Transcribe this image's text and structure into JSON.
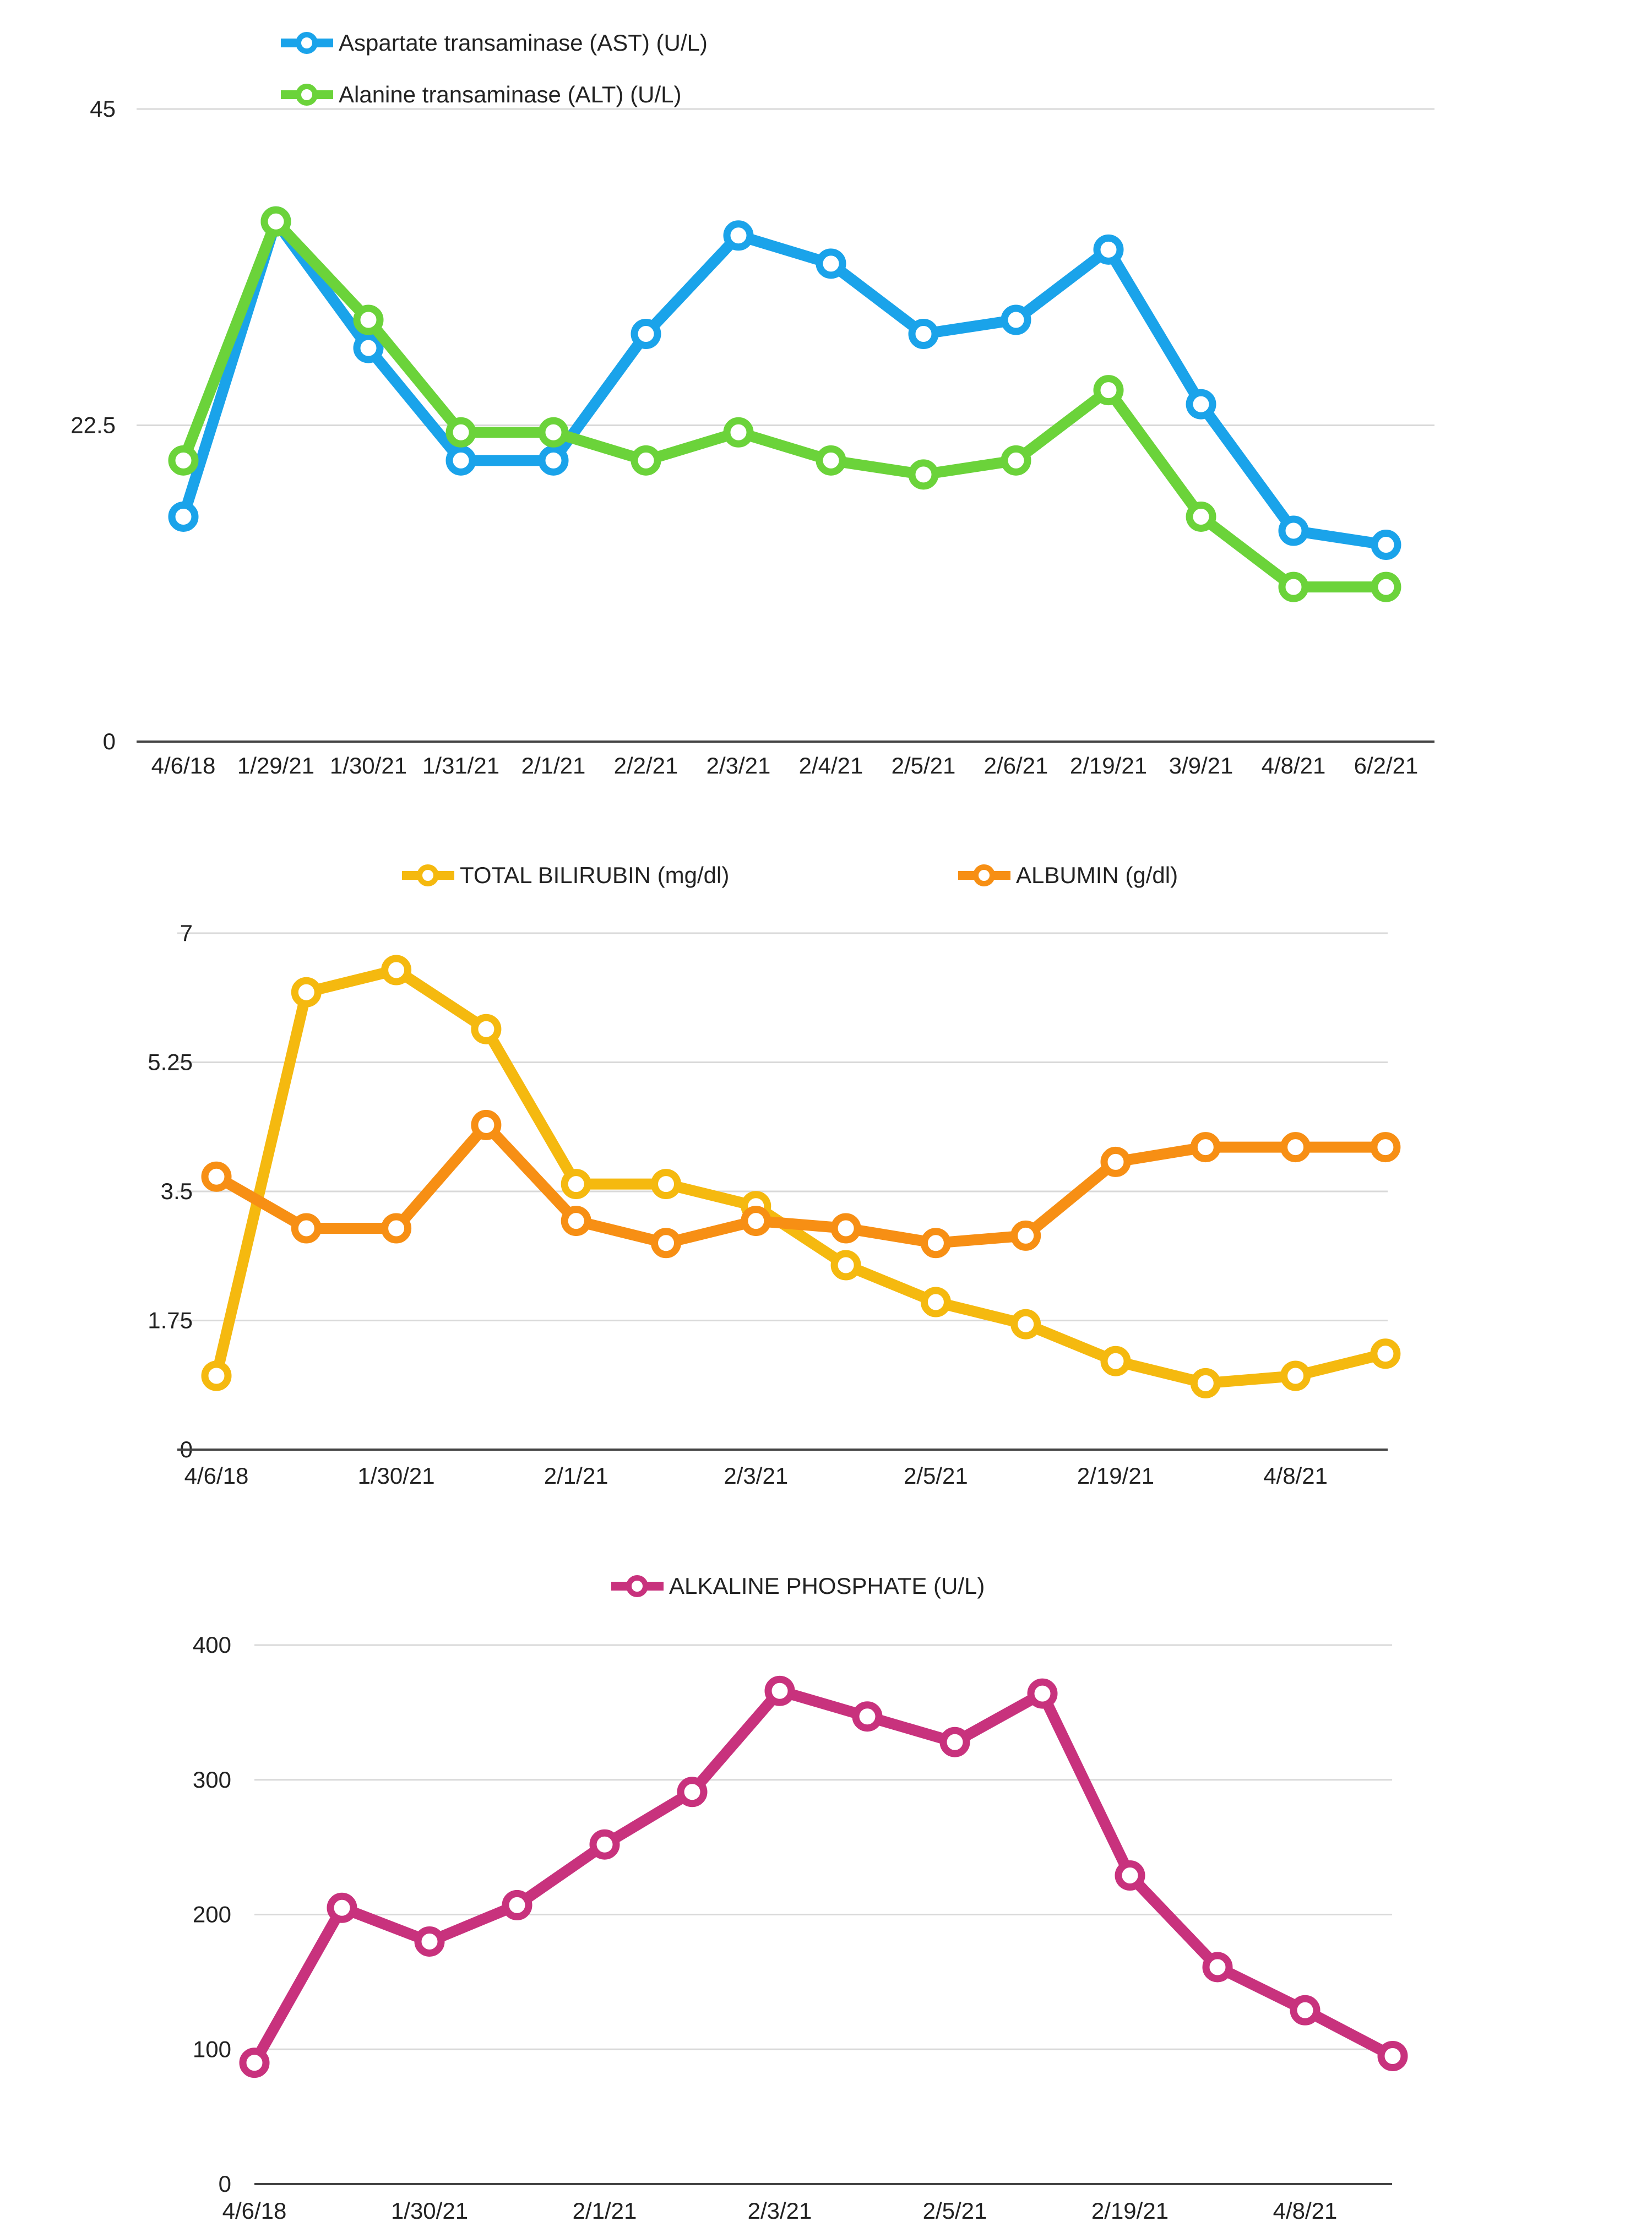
{
  "chart_data": [
    {
      "type": "line",
      "categories": [
        "4/6/18",
        "1/29/21",
        "1/30/21",
        "1/31/21",
        "2/1/21",
        "2/2/21",
        "2/3/21",
        "2/4/21",
        "2/5/21",
        "2/6/21",
        "2/19/21",
        "3/9/21",
        "4/8/21",
        "6/2/21"
      ],
      "x_tick_labels": [
        "4/6/18",
        "1/29/21",
        "1/30/21",
        "1/31/21",
        "2/1/21",
        "2/2/21",
        "2/3/21",
        "2/4/21",
        "2/5/21",
        "2/6/21",
        "2/19/21",
        "3/9/21",
        "4/8/21",
        "6/2/21"
      ],
      "y_ticks": [
        "0",
        "22.5",
        "45"
      ],
      "ylim": [
        0,
        45
      ],
      "grid": true,
      "legend": "top-left",
      "series": [
        {
          "name": "Aspartate transaminase (AST) (U/L)",
          "color": "#1aa3ea",
          "values": [
            16,
            37,
            28,
            20,
            20,
            29,
            36,
            34,
            29,
            30,
            35,
            24,
            15,
            14
          ]
        },
        {
          "name": "Alanine transaminase (ALT) (U/L)",
          "color": "#6bd33a",
          "values": [
            20,
            37,
            30,
            22,
            22,
            20,
            22,
            20,
            19,
            20,
            25,
            16,
            11,
            11
          ]
        }
      ]
    },
    {
      "type": "line",
      "categories": [
        "4/6/18",
        "",
        "1/30/21",
        "",
        "2/1/21",
        "",
        "2/3/21",
        "",
        "2/5/21",
        "",
        "2/19/21",
        "",
        "4/8/21",
        ""
      ],
      "x_tick_labels": [
        "4/6/18",
        "1/30/21",
        "2/1/21",
        "2/3/21",
        "2/5/21",
        "2/19/21",
        "4/8/21"
      ],
      "y_ticks": [
        "0",
        "1.75",
        "3.5",
        "5.25",
        "7"
      ],
      "ylim": [
        0,
        7
      ],
      "grid": true,
      "legend": "top",
      "series": [
        {
          "name": "TOTAL BILIRUBIN (mg/dl)",
          "color": "#f5b90f",
          "values": [
            1.0,
            6.2,
            6.5,
            5.7,
            3.6,
            3.6,
            3.3,
            2.5,
            2.0,
            1.7,
            1.2,
            0.9,
            1.0,
            1.3
          ]
        },
        {
          "name": "ALBUMIN (g/dl)",
          "color": "#f78f14",
          "values": [
            3.7,
            3.0,
            3.0,
            4.4,
            3.1,
            2.8,
            3.1,
            3.0,
            2.8,
            2.9,
            3.9,
            4.1,
            4.1,
            4.1
          ]
        }
      ]
    },
    {
      "type": "line",
      "categories": [
        "4/6/18",
        "",
        "1/30/21",
        "",
        "2/1/21",
        "",
        "2/3/21",
        "",
        "2/5/21",
        "",
        "2/19/21",
        "",
        "4/8/21",
        ""
      ],
      "x_tick_labels": [
        "4/6/18",
        "1/30/21",
        "2/1/21",
        "2/3/21",
        "2/5/21",
        "2/19/21",
        "4/8/21"
      ],
      "y_ticks": [
        "0",
        "100",
        "200",
        "300",
        "400"
      ],
      "ylim": [
        0,
        400
      ],
      "grid": true,
      "legend": "top",
      "series": [
        {
          "name": "ALKALINE PHOSPHATE  (U/L)",
          "color": "#c8327d",
          "values": [
            90,
            205,
            180,
            207,
            252,
            291,
            366,
            347,
            328,
            364,
            229,
            161,
            129,
            95
          ]
        }
      ]
    }
  ]
}
